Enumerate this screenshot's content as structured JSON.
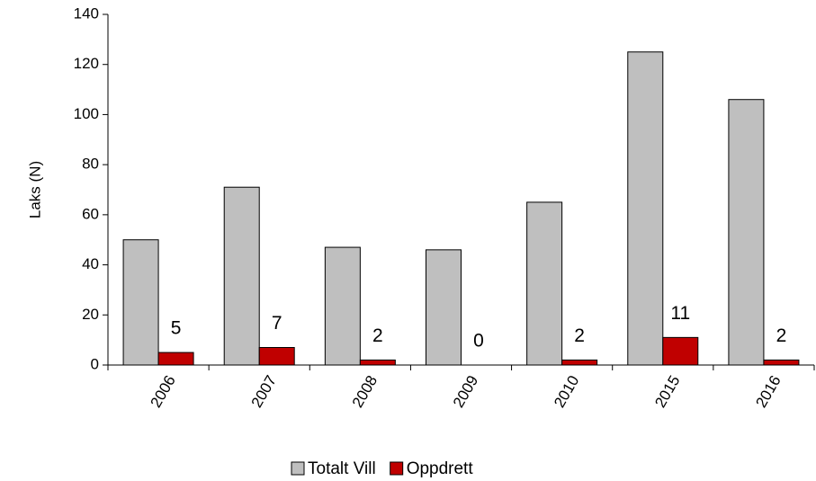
{
  "chart_data": {
    "type": "bar",
    "y_label": "Laks (N)",
    "categories": [
      "2006",
      "2007",
      "2008",
      "2009",
      "2010",
      "2015",
      "2016"
    ],
    "series": [
      {
        "name": "Totalt Vill",
        "color": "#bfbfbf",
        "values": [
          50,
          71,
          47,
          46,
          65,
          125,
          106
        ],
        "data_labels": false
      },
      {
        "name": "Oppdrett",
        "color": "#c00000",
        "values": [
          5,
          7,
          2,
          0,
          2,
          11,
          2
        ],
        "data_labels": true
      }
    ],
    "ylim": [
      0,
      140
    ],
    "yticks": [
      0,
      20,
      40,
      60,
      80,
      100,
      120,
      140
    ],
    "grid": false,
    "legend": "bottom"
  }
}
